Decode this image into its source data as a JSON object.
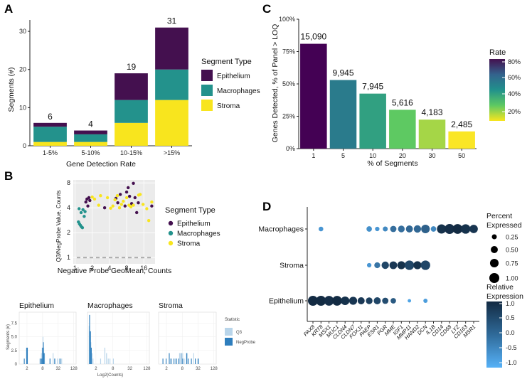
{
  "colors": {
    "epithelium": "#44104f",
    "macrophages": "#23928c",
    "stroma": "#f8e51e",
    "q3": "#b9d5ea",
    "negprobe": "#2e7ebd",
    "panel_bg": "#ebebeb",
    "grid": "#ffffff"
  },
  "chart_data": [
    {
      "id": "A",
      "type": "bar",
      "stacked": true,
      "panel_label": "A",
      "xlabel": "Gene Detection Rate",
      "ylabel": "Segments (#)",
      "categories": [
        "1-5%",
        "5-10%",
        "10-15%",
        ">15%"
      ],
      "series": [
        {
          "name": "Stroma",
          "values": [
            1,
            1,
            6,
            12
          ]
        },
        {
          "name": "Macrophages",
          "values": [
            4,
            2,
            6,
            8
          ]
        },
        {
          "name": "Epithelium",
          "values": [
            1,
            1,
            7,
            11
          ]
        }
      ],
      "totals": [
        "6",
        "4",
        "19",
        "31"
      ],
      "ylim": [
        0,
        33
      ],
      "yticks": [
        "0",
        "10",
        "20",
        "30"
      ],
      "legend_title": "Segment Type",
      "legend": [
        "Epithelium",
        "Macrophages",
        "Stroma"
      ]
    },
    {
      "id": "C",
      "type": "bar",
      "panel_label": "C",
      "xlabel": "% of Segments",
      "ylabel": "Genes Detected, % of Panel > LOQ",
      "categories": [
        "1",
        "5",
        "10",
        "20",
        "30",
        "50"
      ],
      "values": [
        81,
        53,
        42.5,
        30,
        22.4,
        13.3
      ],
      "labels": [
        "15,090",
        "9,945",
        "7,945",
        "5,616",
        "4,183",
        "2,485"
      ],
      "ylim": [
        0,
        100
      ],
      "yticks": [
        "0%",
        "25%",
        "50%",
        "75%",
        "100%"
      ],
      "legend_title": "Rate",
      "legend_ticks": [
        "80%",
        "60%",
        "40%",
        "20%"
      ]
    },
    {
      "id": "B-scatter",
      "type": "scatter",
      "panel_label": "B",
      "xlabel": "Negative Probe GeoMean, Counts",
      "ylabel": "Q3/NegProbe Value, Counts",
      "xticks": [
        "1",
        "2",
        "4",
        "8",
        "16"
      ],
      "yticks": [
        "1",
        "2",
        "4",
        "8"
      ],
      "xlim_log2": [
        -0.1,
        4.65
      ],
      "ylim_log2": [
        -0.25,
        3.12
      ],
      "reference_line_y": 1,
      "legend_title": "Segment Type",
      "legend": [
        "Epithelium",
        "Macrophages",
        "Stroma"
      ],
      "series": [
        {
          "name": "Epithelium",
          "points": [
            [
              1.55,
              4.7
            ],
            [
              1.62,
              5.1
            ],
            [
              1.68,
              4.2
            ],
            [
              1.75,
              5.3
            ],
            [
              1.82,
              4.9
            ],
            [
              3.3,
              4.0
            ],
            [
              5.2,
              5.2
            ],
            [
              5.6,
              4.6
            ],
            [
              6.2,
              5.8
            ],
            [
              7.5,
              4.2
            ],
            [
              8.0,
              6.2
            ],
            [
              8.5,
              7.0
            ],
            [
              9.0,
              5.5
            ],
            [
              9.8,
              4.5
            ],
            [
              10.5,
              7.9
            ],
            [
              11.2,
              5.3
            ],
            [
              12.0,
              3.5
            ],
            [
              12.8,
              4.6
            ],
            [
              22.0,
              4.2
            ]
          ]
        },
        {
          "name": "Macrophages",
          "points": [
            [
              1.15,
              2.7
            ],
            [
              1.2,
              2.55
            ],
            [
              1.25,
              2.45
            ],
            [
              1.3,
              2.35
            ],
            [
              1.35,
              2.3
            ],
            [
              1.18,
              3.9
            ],
            [
              1.28,
              3.5
            ],
            [
              1.38,
              3.8
            ],
            [
              1.45,
              3.15
            ],
            [
              1.5,
              3.6
            ]
          ]
        },
        {
          "name": "Stroma",
          "points": [
            [
              2.0,
              5.4
            ],
            [
              2.2,
              5.1
            ],
            [
              2.6,
              4.3
            ],
            [
              2.8,
              5.6
            ],
            [
              3.7,
              5.3
            ],
            [
              4.2,
              3.95
            ],
            [
              4.6,
              4.2
            ],
            [
              5.0,
              5.0
            ],
            [
              5.5,
              5.6
            ],
            [
              6.0,
              4.0
            ],
            [
              6.5,
              4.4
            ],
            [
              7.0,
              4.8
            ],
            [
              8.0,
              5.3
            ],
            [
              8.8,
              4.3
            ],
            [
              9.5,
              4.1
            ],
            [
              10.5,
              4.3
            ],
            [
              13.0,
              5.7
            ],
            [
              13.8,
              5.8
            ],
            [
              15.5,
              4.4
            ],
            [
              18.0,
              3.9
            ],
            [
              19.5,
              2.8
            ],
            [
              22.0,
              4.7
            ]
          ]
        }
      ]
    },
    {
      "id": "B-hist",
      "type": "bar",
      "xlabel": "Log2(Counts)",
      "ylabel": "Segments (#)",
      "xticks": [
        "2",
        "8",
        "32",
        "128"
      ],
      "yticks": [
        "0",
        "2.5",
        "5.0",
        "7.5"
      ],
      "ylim": [
        0,
        9.5
      ],
      "legend_title": "Statistic",
      "legend": [
        "Q3",
        "NegProbe"
      ],
      "facets": [
        {
          "name": "Epithelium",
          "negprobe": [
            [
              0.6,
              1
            ],
            [
              0.9,
              3
            ],
            [
              1.0,
              3
            ],
            [
              2.7,
              1
            ],
            [
              2.85,
              1
            ],
            [
              2.95,
              3
            ],
            [
              3.05,
              4
            ],
            [
              3.15,
              2
            ],
            [
              3.9,
              1
            ],
            [
              4.5,
              1
            ],
            [
              5.2,
              1
            ]
          ],
          "q3": [
            [
              2.6,
              1
            ],
            [
              2.8,
              2
            ],
            [
              2.9,
              3
            ],
            [
              3.0,
              5
            ],
            [
              3.05,
              4
            ],
            [
              3.1,
              3
            ],
            [
              3.2,
              2
            ],
            [
              3.9,
              1
            ],
            [
              4.3,
              2
            ],
            [
              4.55,
              1
            ],
            [
              4.85,
              1
            ],
            [
              5.1,
              1
            ],
            [
              5.4,
              1
            ]
          ]
        },
        {
          "name": "Macrophages",
          "negprobe": [
            [
              0.2,
              9
            ],
            [
              0.3,
              6
            ],
            [
              0.4,
              3
            ]
          ],
          "q3": [
            [
              0.15,
              7
            ],
            [
              0.25,
              5
            ],
            [
              0.35,
              4
            ],
            [
              0.5,
              2
            ],
            [
              0.6,
              1
            ],
            [
              1.5,
              1
            ],
            [
              2.0,
              3
            ],
            [
              2.2,
              2
            ],
            [
              2.4,
              1
            ],
            [
              2.6,
              1
            ],
            [
              3.0,
              1
            ]
          ]
        },
        {
          "name": "Stroma",
          "negprobe": [
            [
              0.5,
              1
            ],
            [
              0.9,
              1
            ],
            [
              1.3,
              2
            ],
            [
              1.5,
              1
            ],
            [
              1.9,
              1
            ],
            [
              2.2,
              1
            ],
            [
              2.5,
              1
            ],
            [
              2.8,
              2
            ],
            [
              3.0,
              1
            ],
            [
              3.5,
              2
            ],
            [
              3.7,
              1
            ],
            [
              4.1,
              1
            ],
            [
              4.6,
              1
            ],
            [
              5.0,
              1
            ]
          ],
          "q3": [
            [
              1.6,
              1
            ],
            [
              2.1,
              1
            ],
            [
              2.6,
              2
            ],
            [
              3.0,
              2
            ],
            [
              3.2,
              1
            ],
            [
              3.6,
              2
            ],
            [
              4.1,
              1
            ],
            [
              4.4,
              2
            ],
            [
              4.6,
              1
            ],
            [
              4.9,
              1
            ]
          ]
        }
      ]
    },
    {
      "id": "D",
      "type": "scatter",
      "subtype": "dotplot",
      "panel_label": "D",
      "genes": [
        "PAX8",
        "KRT8",
        "MSX1",
        "MUC1",
        "CLDN4",
        "CLDN7",
        "FOXJ1",
        "PAEP",
        "ESR1",
        "PGR",
        "MME",
        "IGF1",
        "MMP11",
        "HAND2",
        "DCN",
        "IL1B",
        "CD14",
        "CD68",
        "LYZ",
        "CD163",
        "MSR1"
      ],
      "cell_types": [
        "Macrophages",
        "Stroma",
        "Epithelium"
      ],
      "percent_expressed": [
        [
          0,
          0.22,
          0,
          0,
          0,
          0,
          0,
          0.3,
          0.2,
          0.25,
          0.4,
          0.45,
          0.5,
          0.55,
          0.75,
          0.3,
          0.85,
          1.0,
          0.95,
          0.9,
          0.7
        ],
        [
          0,
          0,
          0,
          0,
          0,
          0,
          0,
          0.2,
          0.35,
          0.55,
          0.6,
          0.65,
          0.9,
          0.65,
          0.9,
          0,
          0,
          0,
          0,
          0,
          0
        ],
        [
          1.0,
          1.0,
          0.95,
          0.95,
          0.75,
          0.65,
          0.5,
          0.45,
          0.5,
          0.4,
          0.3,
          0,
          0.12,
          0,
          0.18,
          0,
          0,
          0,
          0,
          0,
          0
        ]
      ],
      "relative_expression": [
        [
          0,
          -0.6,
          0,
          0,
          0,
          0,
          0,
          -0.5,
          -0.6,
          -0.4,
          0.0,
          0.0,
          0.1,
          0.1,
          0.2,
          -0.4,
          0.9,
          0.95,
          1.0,
          0.9,
          0.85
        ],
        [
          0,
          0,
          0,
          0,
          0,
          0,
          0,
          -0.6,
          -0.1,
          0.6,
          0.8,
          0.9,
          0.6,
          0.9,
          0.6,
          0,
          0,
          0,
          0,
          0,
          0
        ],
        [
          1.0,
          1.0,
          0.95,
          1.0,
          0.9,
          0.85,
          0.8,
          0.7,
          0.6,
          0.5,
          0.3,
          0,
          -0.8,
          0,
          -0.7,
          0,
          0,
          0,
          0,
          0,
          0
        ]
      ],
      "size_legend_title": "Percent Expressed",
      "size_legend": [
        "0.25",
        "0.50",
        "0.75",
        "1.00"
      ],
      "color_legend_title": "Relative Expression",
      "color_legend_ticks": [
        "1.0",
        "0.5",
        "0.0",
        "-0.5",
        "-1.0"
      ]
    }
  ]
}
